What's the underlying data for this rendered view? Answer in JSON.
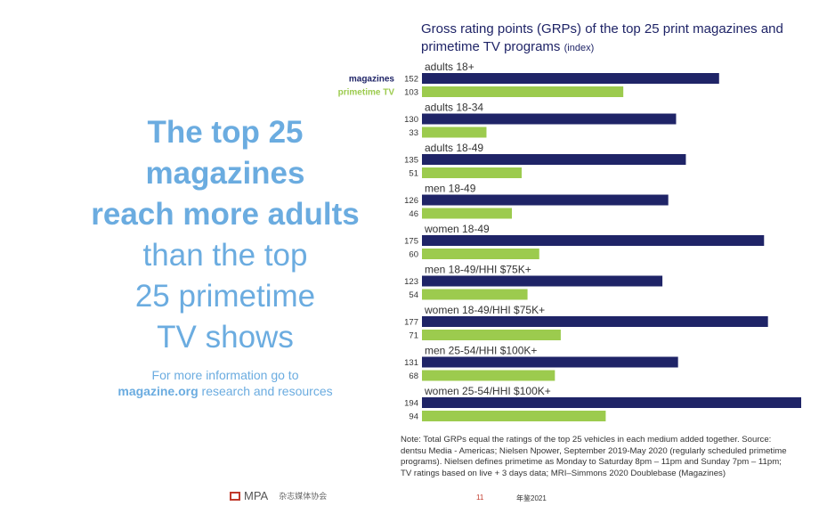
{
  "left_panel": {
    "headline_bold": [
      "The top 25",
      "magazines",
      "reach more adults"
    ],
    "headline_light": [
      "than the top",
      "25 primetime",
      "TV shows"
    ],
    "info_line1": "For more information go to",
    "info_link": "magazine.org",
    "info_line2_rest": " research and resources"
  },
  "chart_title": {
    "main": "Gross rating points (GRPs) of the top 25 print magazines and primetime TV programs",
    "suffix": "(index)"
  },
  "note": "Note: Total GRPs equal the ratings of the top 25 vehicles in each medium added together. Source: dentsu Media - Americas; Nielsen Npower, September 2019-May 2020 (regularly scheduled primetime programs). Nielsen defines primetime as Monday to Saturday 8pm – 11pm and Sunday 7pm – 11pm; TV ratings based on live + 3 days data; MRI–Simmons 2020 Doublebase (Magazines)",
  "footer": {
    "logo_text": "MPA",
    "logo_cn": "杂志媒体协会",
    "page_number": "11",
    "label": "年鉴2021"
  },
  "colors": {
    "magazines": "#1f2467",
    "primetime": "#9ccb4e",
    "accent": "#6bace0"
  },
  "chart_data": {
    "type": "bar",
    "orientation": "horizontal",
    "title": "Gross rating points (GRPs) of the top 25 print magazines and primetime TV programs (index)",
    "categories": [
      "adults 18+",
      "adults 18-34",
      "adults 18-49",
      "men 18-49",
      "women 18-49",
      "men 18-49/HHI $75K+",
      "women 18-49/HHI $75K+",
      "men 25-54/HHI $100K+",
      "women 25-54/HHI $100K+"
    ],
    "series": [
      {
        "name": "magazines",
        "values": [
          152,
          130,
          135,
          126,
          175,
          123,
          177,
          131,
          194
        ]
      },
      {
        "name": "primetime TV",
        "values": [
          103,
          33,
          51,
          46,
          60,
          54,
          71,
          68,
          94
        ]
      }
    ],
    "xlim": [
      0,
      194
    ],
    "legend": "left of first group"
  }
}
